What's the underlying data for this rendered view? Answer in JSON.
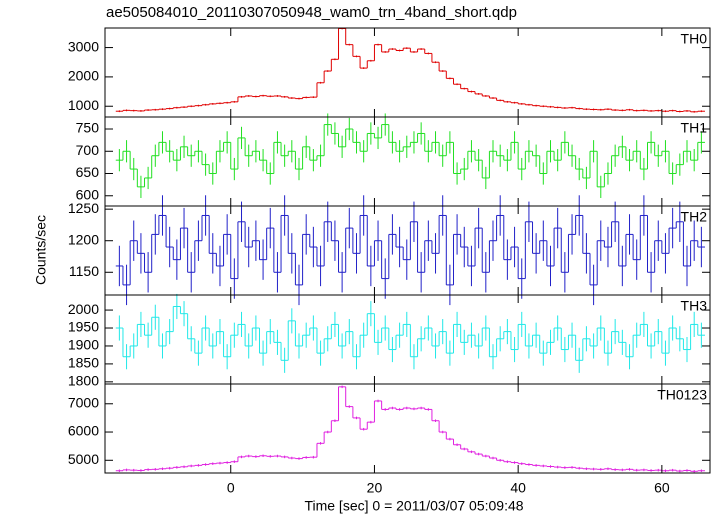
{
  "title": "ae505084010_20110307050948_wam0_trn_4band_short.qdp",
  "ylabel": "Counts/sec",
  "xlabel": "Time [sec] 0 = 2011/03/07 05:09:48",
  "chart_data": [
    {
      "type": "step",
      "label": "TH0",
      "color": "#e00000",
      "error": 30,
      "xlim": [
        -17.5,
        66.7
      ],
      "xticks": [
        0,
        20,
        40,
        60
      ],
      "ylim": [
        633,
        3667
      ],
      "yticks": [
        1000,
        2000,
        3000
      ],
      "x": [
        -15.5,
        -14.5,
        -13.5,
        -12.5,
        -11.5,
        -10.5,
        -9.5,
        -8.5,
        -7.5,
        -6.5,
        -5.5,
        -4.5,
        -3.5,
        -2.5,
        -1.5,
        -0.5,
        0.5,
        1.5,
        2.5,
        3.5,
        4.5,
        5.5,
        6.5,
        7.5,
        8.5,
        9.5,
        10.5,
        11.5,
        12.5,
        13.5,
        14.5,
        15.5,
        16.5,
        17.5,
        18.5,
        19.5,
        20.5,
        21.5,
        22.5,
        23.5,
        24.5,
        25.5,
        26.5,
        27.5,
        28.5,
        29.5,
        30.5,
        31.5,
        32.5,
        33.5,
        34.5,
        35.5,
        36.5,
        37.5,
        38.5,
        39.5,
        40.5,
        41.5,
        42.5,
        43.5,
        44.5,
        45.5,
        46.5,
        47.5,
        48.5,
        49.5,
        50.5,
        51.5,
        52.5,
        53.5,
        54.5,
        55.5,
        56.5,
        57.5,
        58.5,
        59.5,
        60.5,
        61.5,
        62.5,
        63.5,
        64.5,
        65.5
      ],
      "values": [
        830,
        860,
        850,
        840,
        870,
        880,
        900,
        920,
        950,
        970,
        1000,
        1020,
        1050,
        1080,
        1100,
        1120,
        1150,
        1320,
        1350,
        1330,
        1360,
        1340,
        1350,
        1320,
        1280,
        1260,
        1300,
        1310,
        1800,
        2200,
        2600,
        3650,
        3100,
        2700,
        2300,
        2550,
        3100,
        2850,
        2950,
        2900,
        2980,
        2850,
        2950,
        2800,
        2500,
        2200,
        1950,
        1750,
        1600,
        1500,
        1420,
        1350,
        1280,
        1200,
        1150,
        1120,
        1080,
        1050,
        1020,
        1000,
        980,
        960,
        940,
        950,
        920,
        900,
        890,
        880,
        900,
        870,
        860,
        880,
        850,
        860,
        840,
        850,
        830,
        850,
        820,
        840,
        810,
        830
      ]
    },
    {
      "type": "step",
      "label": "TH1",
      "color": "#20e020",
      "error": 25,
      "xlim": [
        -17.5,
        66.7
      ],
      "xticks": [
        0,
        20,
        40,
        60
      ],
      "ylim": [
        577,
        777
      ],
      "yticks": [
        600,
        650,
        700,
        750
      ],
      "x": [
        -15.5,
        -14.5,
        -13.5,
        -12.5,
        -11.5,
        -10.5,
        -9.5,
        -8.5,
        -7.5,
        -6.5,
        -5.5,
        -4.5,
        -3.5,
        -2.5,
        -1.5,
        -0.5,
        0.5,
        1.5,
        2.5,
        3.5,
        4.5,
        5.5,
        6.5,
        7.5,
        8.5,
        9.5,
        10.5,
        11.5,
        12.5,
        13.5,
        14.5,
        15.5,
        16.5,
        17.5,
        18.5,
        19.5,
        20.5,
        21.5,
        22.5,
        23.5,
        24.5,
        25.5,
        26.5,
        27.5,
        28.5,
        29.5,
        30.5,
        31.5,
        32.5,
        33.5,
        34.5,
        35.5,
        36.5,
        37.5,
        38.5,
        39.5,
        40.5,
        41.5,
        42.5,
        43.5,
        44.5,
        45.5,
        46.5,
        47.5,
        48.5,
        49.5,
        50.5,
        51.5,
        52.5,
        53.5,
        54.5,
        55.5,
        56.5,
        57.5,
        58.5,
        59.5,
        60.5,
        61.5,
        62.5,
        63.5,
        64.5,
        65.5
      ],
      "values": [
        680,
        700,
        660,
        620,
        640,
        690,
        720,
        700,
        680,
        710,
        690,
        700,
        670,
        650,
        700,
        720,
        660,
        730,
        690,
        700,
        680,
        650,
        720,
        690,
        700,
        660,
        710,
        680,
        690,
        760,
        740,
        710,
        750,
        720,
        700,
        740,
        730,
        760,
        720,
        700,
        710,
        720,
        740,
        700,
        720,
        690,
        720,
        650,
        660,
        700,
        680,
        640,
        700,
        690,
        680,
        720,
        660,
        700,
        690,
        650,
        700,
        680,
        720,
        690,
        660,
        640,
        700,
        620,
        650,
        690,
        710,
        680,
        700,
        660,
        720,
        690,
        700,
        650,
        670,
        700,
        680,
        720
      ]
    },
    {
      "type": "step",
      "label": "TH2",
      "color": "#2020c8",
      "error": 32,
      "xlim": [
        -17.5,
        66.7
      ],
      "xticks": [
        0,
        20,
        40,
        60
      ],
      "ylim": [
        1114,
        1255
      ],
      "yticks": [
        1150,
        1200,
        1250
      ],
      "x": [
        -15.5,
        -14.5,
        -13.5,
        -12.5,
        -11.5,
        -10.5,
        -9.5,
        -8.5,
        -7.5,
        -6.5,
        -5.5,
        -4.5,
        -3.5,
        -2.5,
        -1.5,
        -0.5,
        0.5,
        1.5,
        2.5,
        3.5,
        4.5,
        5.5,
        6.5,
        7.5,
        8.5,
        9.5,
        10.5,
        11.5,
        12.5,
        13.5,
        14.5,
        15.5,
        16.5,
        17.5,
        18.5,
        19.5,
        20.5,
        21.5,
        22.5,
        23.5,
        24.5,
        25.5,
        26.5,
        27.5,
        28.5,
        29.5,
        30.5,
        31.5,
        32.5,
        33.5,
        34.5,
        35.5,
        36.5,
        37.5,
        38.5,
        39.5,
        40.5,
        41.5,
        42.5,
        43.5,
        44.5,
        45.5,
        46.5,
        47.5,
        48.5,
        49.5,
        50.5,
        51.5,
        52.5,
        53.5,
        54.5,
        55.5,
        56.5,
        57.5,
        58.5,
        59.5,
        60.5,
        61.5,
        62.5,
        63.5,
        64.5,
        65.5
      ],
      "values": [
        1160,
        1130,
        1200,
        1180,
        1150,
        1210,
        1240,
        1190,
        1170,
        1220,
        1150,
        1200,
        1240,
        1180,
        1160,
        1210,
        1140,
        1230,
        1190,
        1200,
        1170,
        1220,
        1150,
        1240,
        1180,
        1130,
        1210,
        1190,
        1160,
        1230,
        1200,
        1150,
        1220,
        1180,
        1240,
        1160,
        1200,
        1140,
        1210,
        1190,
        1170,
        1230,
        1150,
        1200,
        1180,
        1240,
        1130,
        1210,
        1190,
        1160,
        1220,
        1150,
        1200,
        1240,
        1170,
        1190,
        1140,
        1230,
        1180,
        1200,
        1160,
        1220,
        1150,
        1210,
        1240,
        1180,
        1130,
        1200,
        1190,
        1230,
        1160,
        1210,
        1170,
        1240,
        1150,
        1200,
        1180,
        1220,
        1230,
        1160,
        1200,
        1190
      ]
    },
    {
      "type": "step",
      "label": "TH3",
      "color": "#20e8e8",
      "error": 35,
      "xlim": [
        -17.5,
        66.7
      ],
      "xticks": [
        0,
        20,
        40,
        60
      ],
      "ylim": [
        1794,
        2042
      ],
      "yticks": [
        1800,
        1850,
        1900,
        1950,
        2000
      ],
      "x": [
        -15.5,
        -14.5,
        -13.5,
        -12.5,
        -11.5,
        -10.5,
        -9.5,
        -8.5,
        -7.5,
        -6.5,
        -5.5,
        -4.5,
        -3.5,
        -2.5,
        -1.5,
        -0.5,
        0.5,
        1.5,
        2.5,
        3.5,
        4.5,
        5.5,
        6.5,
        7.5,
        8.5,
        9.5,
        10.5,
        11.5,
        12.5,
        13.5,
        14.5,
        15.5,
        16.5,
        17.5,
        18.5,
        19.5,
        20.5,
        21.5,
        22.5,
        23.5,
        24.5,
        25.5,
        26.5,
        27.5,
        28.5,
        29.5,
        30.5,
        31.5,
        32.5,
        33.5,
        34.5,
        35.5,
        36.5,
        37.5,
        38.5,
        39.5,
        40.5,
        41.5,
        42.5,
        43.5,
        44.5,
        45.5,
        46.5,
        47.5,
        48.5,
        49.5,
        50.5,
        51.5,
        52.5,
        53.5,
        54.5,
        55.5,
        56.5,
        57.5,
        58.5,
        59.5,
        60.5,
        61.5,
        62.5,
        63.5,
        64.5,
        65.5
      ],
      "values": [
        1950,
        1870,
        1900,
        1960,
        1930,
        1980,
        1900,
        1940,
        2010,
        1990,
        1920,
        1880,
        1950,
        1900,
        1940,
        1870,
        1930,
        1960,
        1900,
        1950,
        1880,
        1940,
        1910,
        1860,
        1970,
        1900,
        1930,
        1950,
        1880,
        1920,
        1960,
        1900,
        1940,
        1870,
        1930,
        1990,
        1910,
        1950,
        1890,
        1930,
        1960,
        1870,
        1920,
        1950,
        1900,
        1940,
        1880,
        1960,
        1910,
        1930,
        1900,
        1950,
        1870,
        1920,
        1940,
        1890,
        1960,
        1900,
        1930,
        1880,
        1910,
        1950,
        1890,
        1930,
        1860,
        1920,
        1900,
        1950,
        1880,
        1940,
        1910,
        1870,
        1930,
        1960,
        1900,
        1940,
        1880,
        1950,
        1920,
        1890,
        1960,
        1930
      ]
    },
    {
      "type": "step",
      "label": "TH0123",
      "color": "#e020e0",
      "error": 45,
      "xlim": [
        -17.5,
        66.7
      ],
      "xticks": [
        0,
        20,
        40,
        60
      ],
      "ylim": [
        4550,
        7700
      ],
      "yticks": [
        5000,
        6000,
        7000
      ],
      "x": [
        -15.5,
        -14.5,
        -13.5,
        -12.5,
        -11.5,
        -10.5,
        -9.5,
        -8.5,
        -7.5,
        -6.5,
        -5.5,
        -4.5,
        -3.5,
        -2.5,
        -1.5,
        -0.5,
        0.5,
        1.5,
        2.5,
        3.5,
        4.5,
        5.5,
        6.5,
        7.5,
        8.5,
        9.5,
        10.5,
        11.5,
        12.5,
        13.5,
        14.5,
        15.5,
        16.5,
        17.5,
        18.5,
        19.5,
        20.5,
        21.5,
        22.5,
        23.5,
        24.5,
        25.5,
        26.5,
        27.5,
        28.5,
        29.5,
        30.5,
        31.5,
        32.5,
        33.5,
        34.5,
        35.5,
        36.5,
        37.5,
        38.5,
        39.5,
        40.5,
        41.5,
        42.5,
        43.5,
        44.5,
        45.5,
        46.5,
        47.5,
        48.5,
        49.5,
        50.5,
        51.5,
        52.5,
        53.5,
        54.5,
        55.5,
        56.5,
        57.5,
        58.5,
        59.5,
        60.5,
        61.5,
        62.5,
        63.5,
        64.5,
        65.5
      ],
      "values": [
        4630,
        4660,
        4650,
        4640,
        4670,
        4680,
        4700,
        4720,
        4750,
        4770,
        4800,
        4820,
        4850,
        4880,
        4900,
        4920,
        4950,
        5120,
        5150,
        5130,
        5160,
        5140,
        5150,
        5120,
        5080,
        5060,
        5100,
        5110,
        5600,
        6000,
        6400,
        7600,
        6900,
        6500,
        6100,
        6350,
        7100,
        6800,
        6850,
        6800,
        6850,
        6820,
        6850,
        6800,
        6400,
        6000,
        5750,
        5550,
        5400,
        5300,
        5220,
        5150,
        5080,
        5000,
        4950,
        4920,
        4880,
        4850,
        4820,
        4800,
        4780,
        4760,
        4740,
        4750,
        4720,
        4700,
        4690,
        4680,
        4700,
        4670,
        4660,
        4680,
        4650,
        4660,
        4640,
        4650,
        4630,
        4650,
        4620,
        4640,
        4610,
        4630
      ]
    }
  ]
}
